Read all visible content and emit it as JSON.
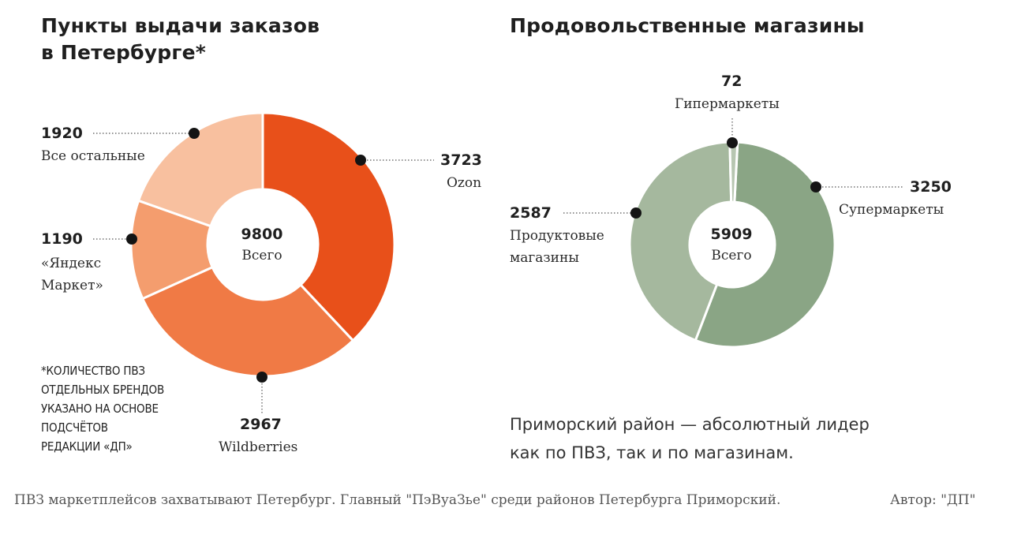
{
  "left_chart": {
    "title_line1": "Пункты выдачи заказов",
    "title_line2": "в Петербурге*",
    "total_value": "9800",
    "total_label": "Всего",
    "footnote": [
      "*КОЛИЧЕСТВО ПВЗ",
      "ОТДЕЛЬНЫХ БРЕНДОВ",
      "УКАЗАНО НА ОСНОВЕ",
      "ПОДСЧЁТОВ",
      "РЕДАКЦИИ «ДП»"
    ]
  },
  "right_chart": {
    "title": "Продовольственные магазины",
    "total_value": "5909",
    "total_label": "Всего"
  },
  "remark_line1": "Приморский район — абсолютный лидер",
  "remark_line2": "как по ПВЗ, так и по магазинам.",
  "caption": "ПВЗ маркетплейсов захватывают Петербург. Главный \"ПэВуаЗье\" среди районов Петербурга Приморский.",
  "author": "Автор: \"ДП\"",
  "chart_data": [
    {
      "type": "pie",
      "title": "Пункты выдачи заказов в Петербурге*",
      "total": 9800,
      "categories": [
        "Ozon",
        "Wildberries",
        "«Яндекс Маркет»",
        "Все остальные"
      ],
      "values": [
        3723,
        2967,
        1190,
        1920
      ],
      "labels": [
        "3723",
        "2967",
        "1190",
        "1920"
      ],
      "colors": [
        "#e8501a",
        "#f07a45",
        "#f49d6e",
        "#f8c09f"
      ]
    },
    {
      "type": "pie",
      "title": "Продовольственные магазины",
      "total": 5909,
      "categories": [
        "Супермаркеты",
        "Продуктовые магазины",
        "Гипермаркеты"
      ],
      "values": [
        3250,
        2587,
        72
      ],
      "labels": [
        "3250",
        "2587",
        "72"
      ],
      "colors": [
        "#8aa585",
        "#a5b89e",
        "#b7c6b1"
      ]
    }
  ]
}
